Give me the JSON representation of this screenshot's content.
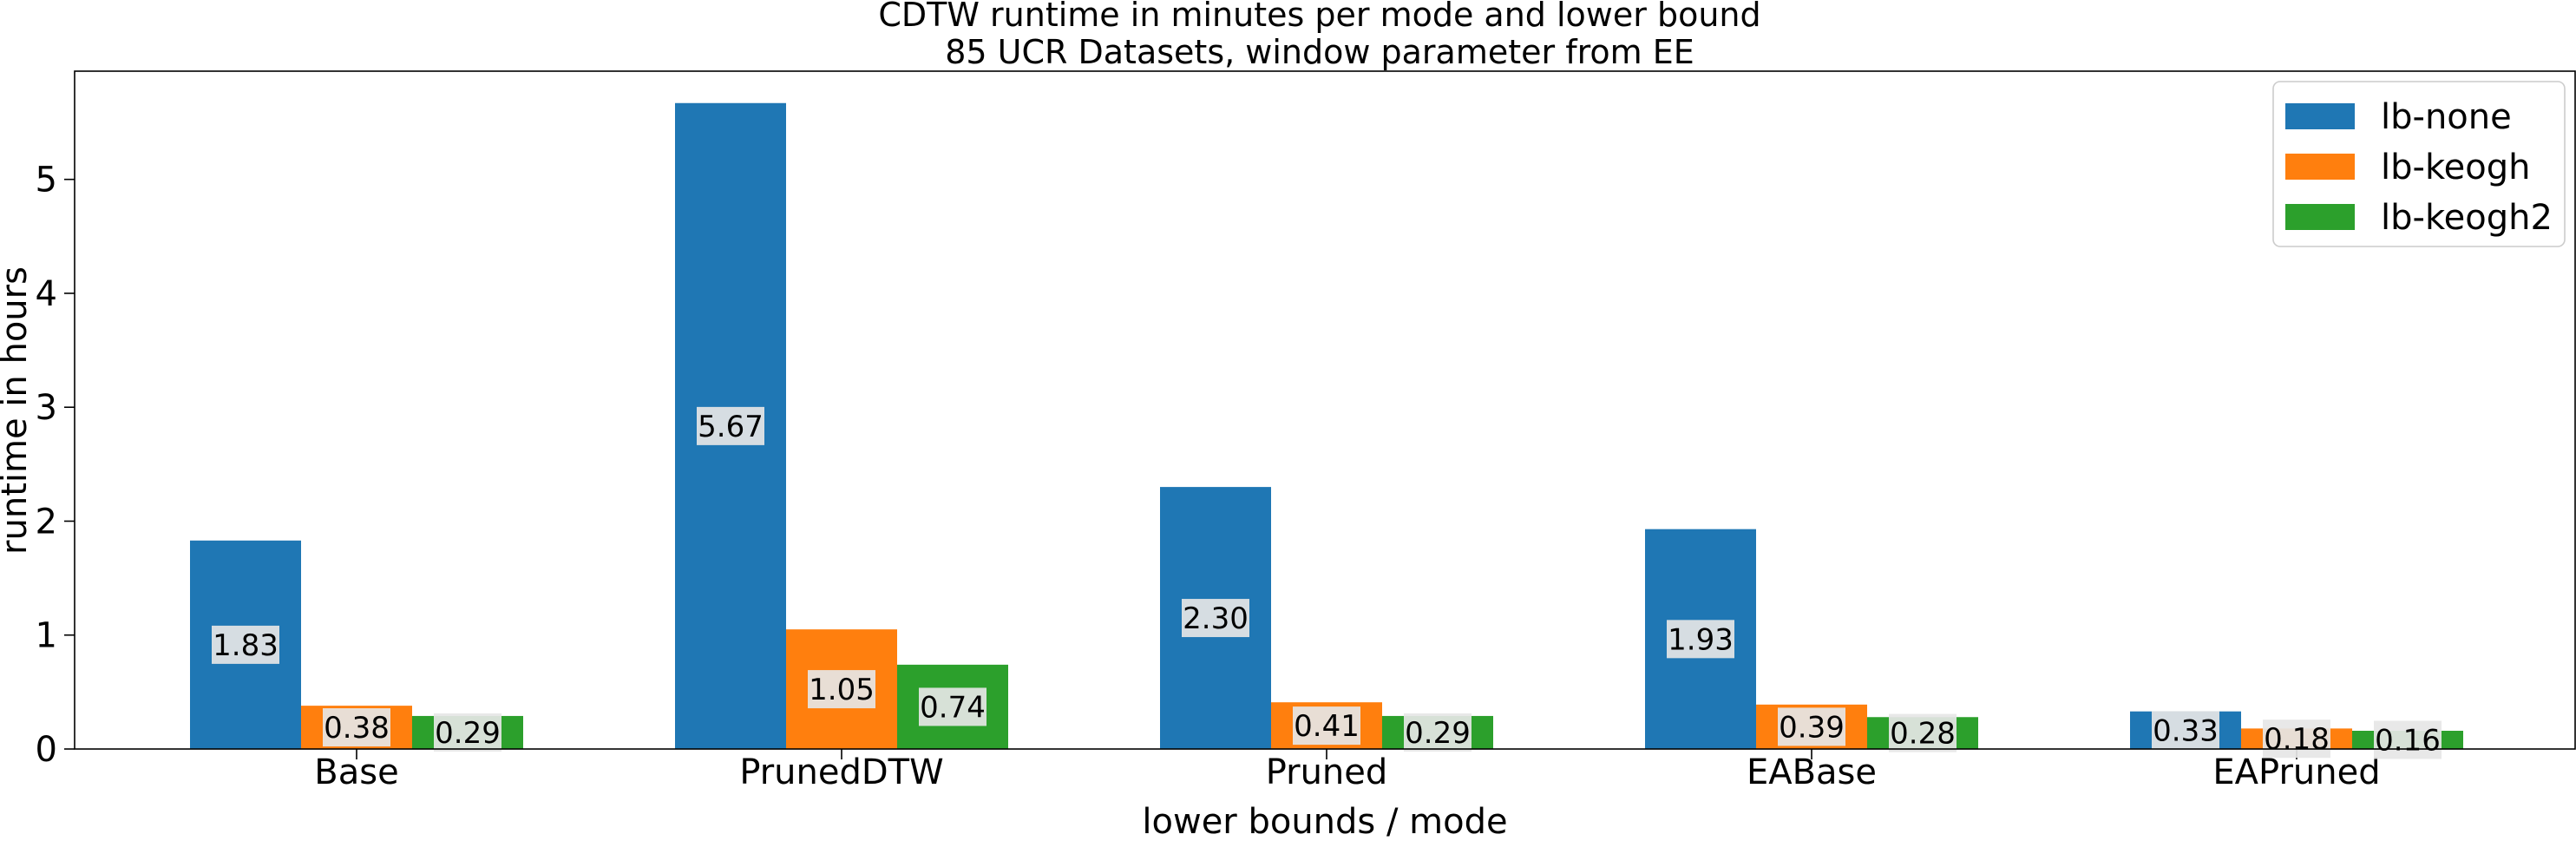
{
  "chart_data": {
    "type": "bar",
    "title": "CDTW runtime in minutes per mode and lower bound",
    "subtitle": "85 UCR Datasets, window parameter from EE",
    "xlabel": "lower bounds / mode",
    "ylabel": "runtime in hours",
    "categories": [
      "Base",
      "PrunedDTW",
      "Pruned",
      "EABase",
      "EAPruned"
    ],
    "series": [
      {
        "name": "lb-none",
        "color": "#1f77b4",
        "values": [
          1.83,
          5.67,
          2.3,
          1.93,
          0.33
        ],
        "labels": [
          "1.83",
          "5.67",
          "2.30",
          "1.93",
          "0.33"
        ]
      },
      {
        "name": "lb-keogh",
        "color": "#ff7f0e",
        "values": [
          0.38,
          1.05,
          0.41,
          0.39,
          0.18
        ],
        "labels": [
          "0.38",
          "1.05",
          "0.41",
          "0.39",
          "0.18"
        ]
      },
      {
        "name": "lb-keogh2",
        "color": "#2ca02c",
        "values": [
          0.29,
          0.74,
          0.29,
          0.28,
          0.16
        ],
        "labels": [
          "0.29",
          "0.74",
          "0.29",
          "0.28",
          "0.16"
        ]
      }
    ],
    "ylim": [
      0,
      5.95
    ],
    "yticks": [
      "0",
      "1",
      "2",
      "3",
      "4",
      "5"
    ],
    "legend_position": "top-right",
    "grid": false
  }
}
